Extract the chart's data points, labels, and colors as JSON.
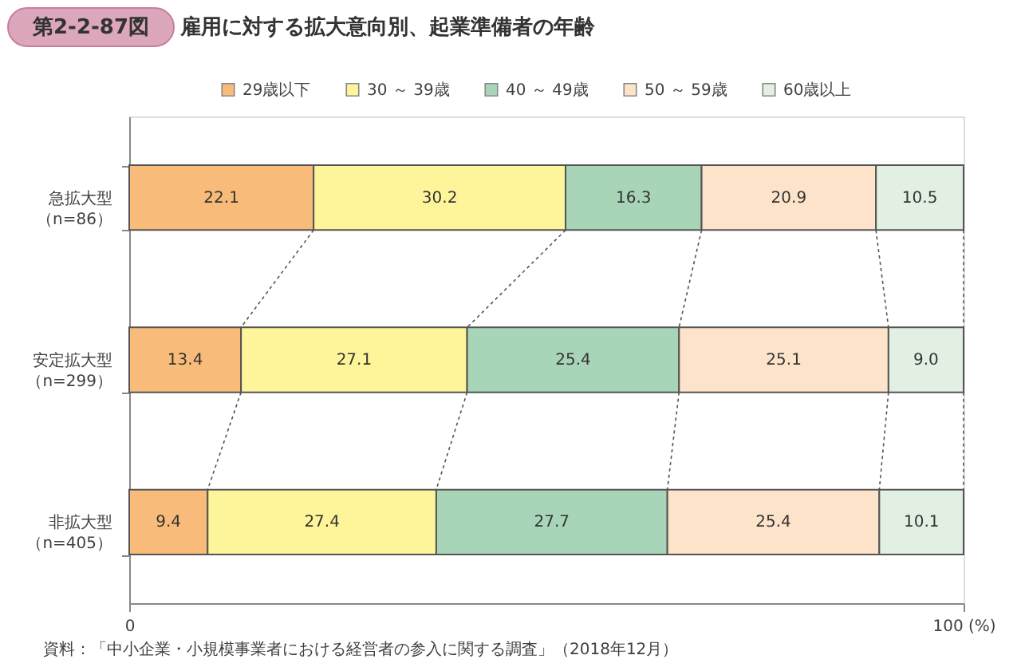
{
  "chart_data": {
    "type": "bar",
    "orientation": "horizontal",
    "stacked": true,
    "legend": "top",
    "title": "雇用に対する拡大意向別、起業準備者の年齢",
    "annotations": [
      "第2-2-87図",
      "資料：「中小企業・小規模事業者における経営者の参入に関する調査」（2018年12月）"
    ],
    "categories": [
      "急拡大型（n=86）",
      "安定拡大型（n=299）",
      "非拡大型（n=405）"
    ],
    "series": [
      {
        "name": "29歳以下",
        "color": "#f9bb79",
        "values": [
          22.1,
          13.4,
          9.4
        ],
        "value_labels": [
          "22.1",
          "13.4",
          "9.4"
        ]
      },
      {
        "name": "30 ～ 39歳",
        "color": "#fef59a",
        "values": [
          30.2,
          27.1,
          27.4
        ],
        "value_labels": [
          "30.2",
          "27.1",
          "27.4"
        ]
      },
      {
        "name": "40 ～ 49歳",
        "color": "#a8d5b8",
        "values": [
          16.3,
          25.4,
          27.7
        ],
        "value_labels": [
          "16.3",
          "25.4",
          "27.7"
        ]
      },
      {
        "name": "50 ～ 59歳",
        "color": "#fde3c9",
        "values": [
          20.9,
          25.1,
          25.4
        ],
        "value_labels": [
          "20.9",
          "25.1",
          "25.4"
        ]
      },
      {
        "name": "60歳以上",
        "color": "#e1f0e3",
        "values": [
          10.5,
          9.0,
          10.1
        ],
        "value_labels": [
          "10.5",
          "9.0",
          "10.1"
        ]
      }
    ],
    "xlim": [
      0,
      100
    ],
    "xticks": [
      0,
      {
        "value": 100,
        "label": "100 (%)"
      }
    ]
  }
}
